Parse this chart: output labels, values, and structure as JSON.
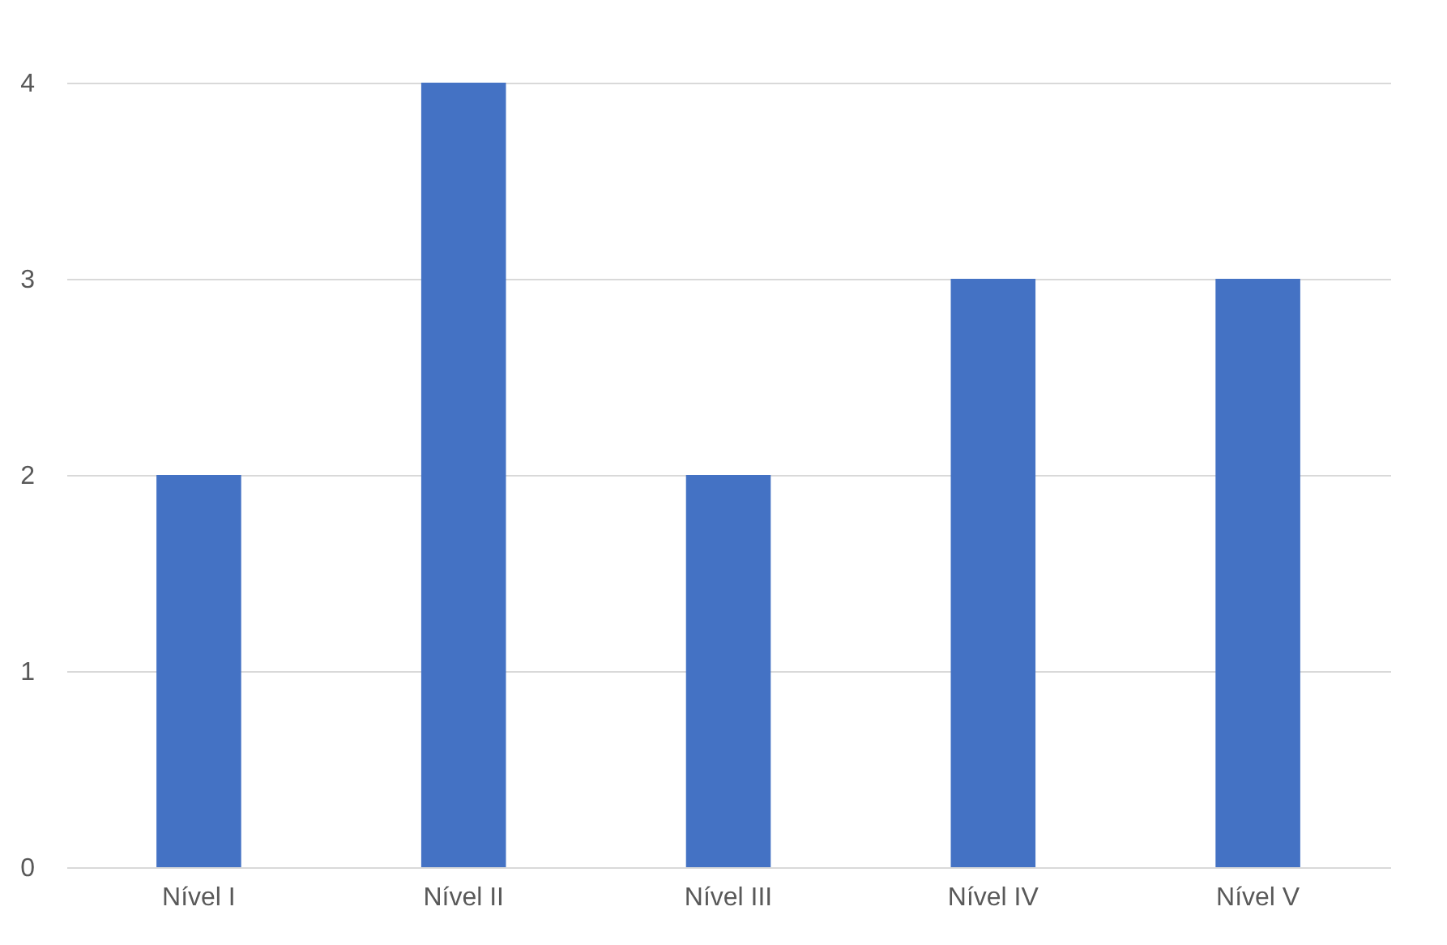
{
  "chart_data": {
    "type": "bar",
    "categories": [
      "Nível I",
      "Nível II",
      "Nível III",
      "Nível IV",
      "Nível V"
    ],
    "values": [
      2,
      4,
      2,
      3,
      3
    ],
    "color": "#4472c4",
    "ylim": [
      0,
      4
    ],
    "yticks": [
      0,
      1,
      2,
      3,
      4
    ],
    "grid": "y"
  }
}
